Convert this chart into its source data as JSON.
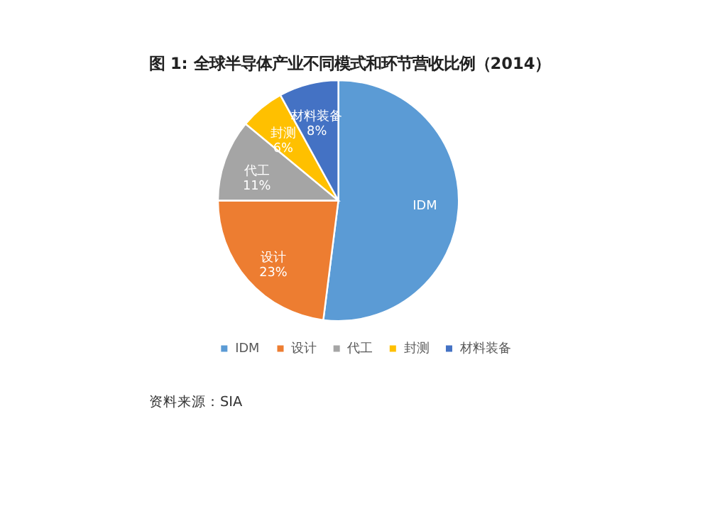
{
  "chart_data": {
    "type": "pie",
    "title": "图 1: 全球半导体产业不同模式和环节营收比例（2014）",
    "categories": [
      "IDM",
      "设计",
      "代工",
      "封测",
      "材料装备"
    ],
    "values": [
      52,
      23,
      11,
      6,
      8
    ],
    "colors": [
      "#5b9bd5",
      "#ed7d31",
      "#a5a5a5",
      "#ffc000",
      "#4472c4"
    ],
    "value_labels": [
      null,
      "23%",
      "11%",
      "6%",
      "8%"
    ],
    "legend": "bottom",
    "annotations": [
      "资料来源：SIA"
    ]
  }
}
